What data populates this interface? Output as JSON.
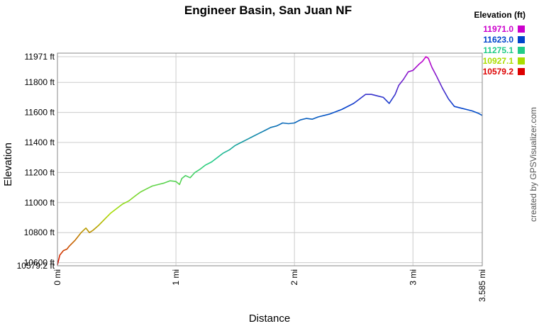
{
  "chart_data": {
    "type": "line",
    "title": "Engineer Basin, San Juan NF",
    "xlabel": "Distance",
    "ylabel": "Elevation",
    "xlim": [
      0,
      3.585
    ],
    "ylim": [
      10579.2,
      11971
    ],
    "x_ticks": [
      {
        "value": 0,
        "label": "0 mi"
      },
      {
        "value": 1,
        "label": "1 mi"
      },
      {
        "value": 2,
        "label": "2 mi"
      },
      {
        "value": 3,
        "label": "3 mi"
      },
      {
        "value": 3.585,
        "label": "3.585 mi"
      }
    ],
    "y_ticks": [
      {
        "value": 10579.2,
        "label": "10579.2 ft"
      },
      {
        "value": 10600,
        "label": "10600 ft"
      },
      {
        "value": 10800,
        "label": "10800 ft"
      },
      {
        "value": 11000,
        "label": "11000 ft"
      },
      {
        "value": 11200,
        "label": "11200 ft"
      },
      {
        "value": 11400,
        "label": "11400 ft"
      },
      {
        "value": 11600,
        "label": "11600 ft"
      },
      {
        "value": 11800,
        "label": "11800 ft"
      },
      {
        "value": 11971,
        "label": "11971 ft"
      }
    ],
    "grid": true,
    "legend": {
      "title": "Elevation (ft)",
      "placement": "top-right",
      "entries": [
        {
          "label": "11971.0",
          "color": "#cc00cc"
        },
        {
          "label": "11623.0",
          "color": "#0044cc"
        },
        {
          "label": "11275.1",
          "color": "#22cc88"
        },
        {
          "label": "10927.1",
          "color": "#aadd00"
        },
        {
          "label": "10579.2",
          "color": "#dd0000"
        }
      ]
    },
    "series": [
      {
        "x": [
          0.0,
          0.02,
          0.05,
          0.08,
          0.1,
          0.15,
          0.2,
          0.24,
          0.27,
          0.3,
          0.35,
          0.4,
          0.45,
          0.5,
          0.55,
          0.6,
          0.65,
          0.7,
          0.75,
          0.8,
          0.85,
          0.9,
          0.95,
          1.0,
          1.03,
          1.05,
          1.08,
          1.12,
          1.16,
          1.2,
          1.25,
          1.3,
          1.35,
          1.4,
          1.45,
          1.5,
          1.55,
          1.6,
          1.65,
          1.7,
          1.75,
          1.8,
          1.85,
          1.9,
          1.95,
          2.0,
          2.05,
          2.1,
          2.15,
          2.2,
          2.3,
          2.4,
          2.5,
          2.55,
          2.6,
          2.65,
          2.7,
          2.75,
          2.8,
          2.85,
          2.88,
          2.92,
          2.96,
          3.0,
          3.05,
          3.08,
          3.11,
          3.13,
          3.16,
          3.2,
          3.25,
          3.3,
          3.35,
          3.4,
          3.45,
          3.5,
          3.55,
          3.585
        ],
        "y": [
          10585,
          10650,
          10680,
          10690,
          10710,
          10750,
          10800,
          10830,
          10800,
          10815,
          10850,
          10890,
          10930,
          10960,
          10990,
          11010,
          11040,
          11070,
          11090,
          11110,
          11120,
          11130,
          11145,
          11140,
          11120,
          11160,
          11180,
          11165,
          11200,
          11220,
          11250,
          11270,
          11300,
          11330,
          11350,
          11380,
          11400,
          11420,
          11440,
          11460,
          11480,
          11500,
          11510,
          11530,
          11525,
          11530,
          11550,
          11560,
          11555,
          11570,
          11590,
          11620,
          11660,
          11690,
          11720,
          11720,
          11710,
          11700,
          11660,
          11720,
          11780,
          11820,
          11870,
          11880,
          11920,
          11940,
          11971,
          11960,
          11900,
          11840,
          11760,
          11690,
          11640,
          11630,
          11620,
          11610,
          11595,
          11580
        ]
      }
    ]
  },
  "credit": "created by GPSVisualizer.com"
}
